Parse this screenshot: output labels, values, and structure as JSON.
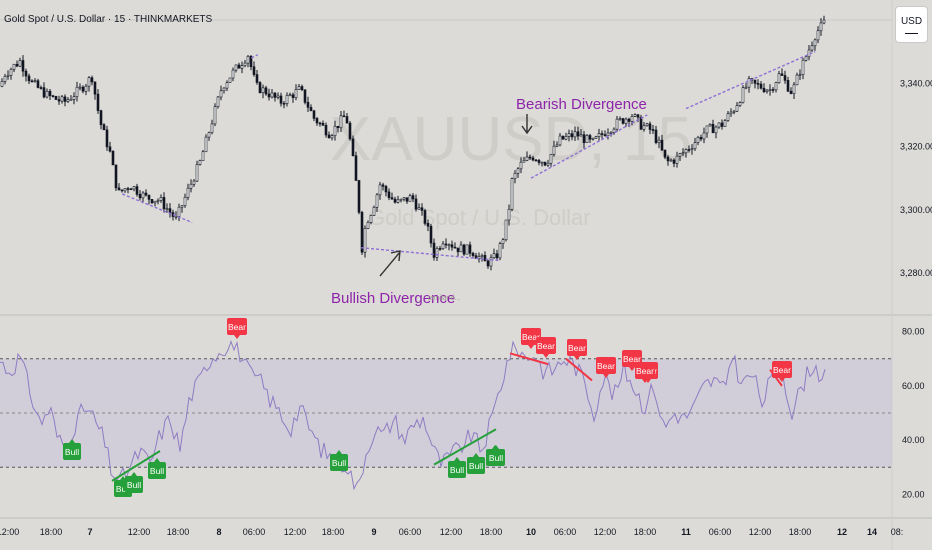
{
  "header": {
    "symbol_title": "Gold Spot / U.S. Dollar · 15 · THINKMARKETS"
  },
  "currency_button": {
    "label": "USD"
  },
  "watermark": {
    "ticker": "XAUUSD, 15",
    "name": "Gold Spot / U.S. Dollar"
  },
  "annotations": {
    "bearish": "Bearish Divergence",
    "bullish": "Bullish Divergence",
    "author": "tamiland..."
  },
  "colors": {
    "background": "#dcdbd7",
    "candle": "#131722",
    "divergence_line": "#8f6fd6",
    "annotation_text": "#8e24aa",
    "rsi_line": "#8e7cc3",
    "rsi_band": "#c9c2da",
    "bull": "#26a03a",
    "bear": "#f23645",
    "grid": "#c8c8c8"
  },
  "chart_data": [
    {
      "type": "candlestick",
      "title": "Gold Spot / U.S. Dollar · 15 · THINKMARKETS",
      "y_ticks": [
        "3,280.00",
        "3,300.00",
        "3,320.00",
        "3,340.00"
      ],
      "ylim": [
        3274,
        3360
      ],
      "x_tick_labels": [
        "12:00",
        "18:00",
        "7",
        "12:00",
        "18:00",
        "8",
        "06:00",
        "12:00",
        "18:00",
        "9",
        "06:00",
        "12:00",
        "18:00",
        "10",
        "06:00",
        "12:00",
        "18:00",
        "11",
        "06:00",
        "12:00",
        "18:00",
        "12",
        "14",
        "08:"
      ],
      "close_path": [
        [
          0,
          3339
        ],
        [
          5,
          3343
        ],
        [
          12,
          3345
        ],
        [
          20,
          3347
        ],
        [
          32,
          3340
        ],
        [
          48,
          3336
        ],
        [
          64,
          3334
        ],
        [
          80,
          3338
        ],
        [
          92,
          3342
        ],
        [
          100,
          3328
        ],
        [
          110,
          3318
        ],
        [
          118,
          3305
        ],
        [
          130,
          3308
        ],
        [
          145,
          3304
        ],
        [
          160,
          3303
        ],
        [
          176,
          3297
        ],
        [
          188,
          3306
        ],
        [
          200,
          3315
        ],
        [
          212,
          3328
        ],
        [
          222,
          3339
        ],
        [
          232,
          3343
        ],
        [
          240,
          3346
        ],
        [
          248,
          3349
        ],
        [
          256,
          3339
        ],
        [
          268,
          3337
        ],
        [
          280,
          3334
        ],
        [
          300,
          3338
        ],
        [
          314,
          3329
        ],
        [
          330,
          3324
        ],
        [
          346,
          3330
        ],
        [
          352,
          3318
        ],
        [
          358,
          3304
        ],
        [
          362,
          3288
        ],
        [
          366,
          3296
        ],
        [
          372,
          3300
        ],
        [
          380,
          3308
        ],
        [
          396,
          3302
        ],
        [
          412,
          3304
        ],
        [
          426,
          3296
        ],
        [
          434,
          3286
        ],
        [
          444,
          3291
        ],
        [
          456,
          3288
        ],
        [
          472,
          3287
        ],
        [
          486,
          3283
        ],
        [
          496,
          3285
        ],
        [
          502,
          3290
        ],
        [
          508,
          3298
        ],
        [
          512,
          3309
        ],
        [
          520,
          3314
        ],
        [
          532,
          3317
        ],
        [
          546,
          3315
        ],
        [
          560,
          3322
        ],
        [
          576,
          3324
        ],
        [
          592,
          3321
        ],
        [
          606,
          3325
        ],
        [
          620,
          3328
        ],
        [
          632,
          3330
        ],
        [
          640,
          3327
        ],
        [
          652,
          3325
        ],
        [
          660,
          3320
        ],
        [
          666,
          3315
        ],
        [
          676,
          3316
        ],
        [
          690,
          3320
        ],
        [
          706,
          3325
        ],
        [
          722,
          3327
        ],
        [
          734,
          3332
        ],
        [
          748,
          3340
        ],
        [
          760,
          3339
        ],
        [
          770,
          3338
        ],
        [
          780,
          3343
        ],
        [
          792,
          3337
        ],
        [
          800,
          3344
        ],
        [
          808,
          3350
        ],
        [
          816,
          3356
        ],
        [
          822,
          3358
        ],
        [
          826,
          3360
        ]
      ],
      "divergences": [
        {
          "kind": "bullish",
          "x_from": "7 06:00",
          "x_to": "7 19:00",
          "y_from": 3305,
          "y_to": 3296
        },
        {
          "kind": "bullish",
          "x_from": "8 22:00",
          "x_to": "9 19:00",
          "y_from": 3288,
          "y_to": 3284
        },
        {
          "kind": "bearish",
          "x_from": "8 05:00",
          "x_to": "8 06:00",
          "y_from": 3348,
          "y_to": 3349
        },
        {
          "kind": "bearish",
          "x_from": "10 00:00",
          "x_to": "10 18:00",
          "y_from": 3310,
          "y_to": 3330
        },
        {
          "kind": "bearish",
          "x_from": "11 00:00",
          "x_to": "11 20:00",
          "y_from": 3332,
          "y_to": 3350
        }
      ]
    },
    {
      "type": "line",
      "title": "RSI",
      "y_ticks": [
        "20.00",
        "40.00",
        "60.00",
        "80.00"
      ],
      "ylim": [
        15,
        85
      ],
      "band": [
        30,
        70
      ],
      "midline": 50,
      "rsi_path": [
        [
          0,
          69
        ],
        [
          10,
          65
        ],
        [
          20,
          71
        ],
        [
          30,
          58
        ],
        [
          40,
          46
        ],
        [
          50,
          52
        ],
        [
          58,
          40
        ],
        [
          66,
          38
        ],
        [
          74,
          45
        ],
        [
          84,
          52
        ],
        [
          94,
          48
        ],
        [
          104,
          40
        ],
        [
          112,
          28
        ],
        [
          120,
          25
        ],
        [
          130,
          30
        ],
        [
          140,
          36
        ],
        [
          150,
          31
        ],
        [
          160,
          42
        ],
        [
          170,
          48
        ],
        [
          180,
          37
        ],
        [
          190,
          56
        ],
        [
          200,
          62
        ],
        [
          210,
          70
        ],
        [
          220,
          73
        ],
        [
          230,
          76
        ],
        [
          240,
          72
        ],
        [
          250,
          64
        ],
        [
          260,
          62
        ],
        [
          270,
          55
        ],
        [
          280,
          50
        ],
        [
          290,
          44
        ],
        [
          300,
          52
        ],
        [
          310,
          44
        ],
        [
          320,
          37
        ],
        [
          330,
          34
        ],
        [
          338,
          30
        ],
        [
          346,
          32
        ],
        [
          352,
          26
        ],
        [
          358,
          21
        ],
        [
          364,
          33
        ],
        [
          374,
          44
        ],
        [
          384,
          42
        ],
        [
          394,
          48
        ],
        [
          404,
          40
        ],
        [
          414,
          46
        ],
        [
          424,
          48
        ],
        [
          434,
          36
        ],
        [
          442,
          31
        ],
        [
          452,
          35
        ],
        [
          462,
          38
        ],
        [
          472,
          42
        ],
        [
          482,
          36
        ],
        [
          492,
          48
        ],
        [
          502,
          62
        ],
        [
          510,
          72
        ],
        [
          518,
          74
        ],
        [
          526,
          70
        ],
        [
          534,
          72
        ],
        [
          544,
          65
        ],
        [
          554,
          66
        ],
        [
          564,
          70
        ],
        [
          574,
          68
        ],
        [
          584,
          62
        ],
        [
          594,
          50
        ],
        [
          604,
          64
        ],
        [
          614,
          56
        ],
        [
          624,
          66
        ],
        [
          634,
          60
        ],
        [
          644,
          52
        ],
        [
          654,
          60
        ],
        [
          664,
          44
        ],
        [
          674,
          50
        ],
        [
          684,
          48
        ],
        [
          694,
          52
        ],
        [
          704,
          60
        ],
        [
          714,
          62
        ],
        [
          724,
          58
        ],
        [
          732,
          72
        ],
        [
          742,
          60
        ],
        [
          752,
          65
        ],
        [
          762,
          54
        ],
        [
          772,
          63
        ],
        [
          782,
          66
        ],
        [
          792,
          50
        ],
        [
          802,
          60
        ],
        [
          812,
          68
        ],
        [
          820,
          64
        ],
        [
          826,
          66
        ]
      ],
      "signals": [
        {
          "label": "Bull",
          "x": "7 03:00"
        },
        {
          "label": "Bull",
          "x": "7 12:00"
        },
        {
          "label": "Bull",
          "x": "7 14:00"
        },
        {
          "label": "Bull",
          "x": "7 19:00"
        },
        {
          "label": "Bull",
          "x": "8 23:00"
        },
        {
          "label": "Bull",
          "x": "9 14:00"
        },
        {
          "label": "Bull",
          "x": "9 17:00"
        },
        {
          "label": "Bull",
          "x": "9 19:00"
        },
        {
          "label": "Bull",
          "x": "9 21:00"
        },
        {
          "label": "Bear",
          "x": "8 05:00"
        },
        {
          "label": "Bear",
          "x": "10 00:00"
        },
        {
          "label": "Bear",
          "x": "10 02:00"
        },
        {
          "label": "Bear",
          "x": "10 03:00"
        },
        {
          "label": "Bear",
          "x": "10 06:00"
        },
        {
          "label": "Bear",
          "x": "10 13:00"
        },
        {
          "label": "Bear",
          "x": "10 16:00"
        },
        {
          "label": "Bear",
          "x": "10 18:00"
        },
        {
          "label": "Bear",
          "x": "11 17:00"
        }
      ]
    }
  ]
}
